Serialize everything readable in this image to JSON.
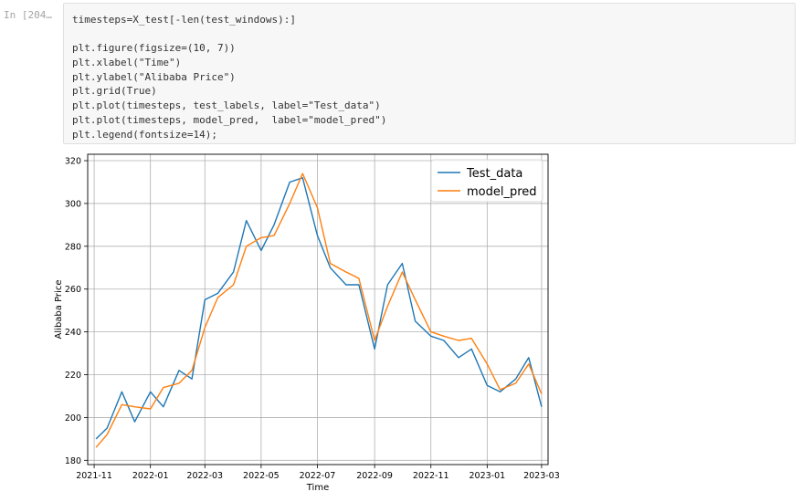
{
  "cell": {
    "prompt": "In [204…",
    "code_lines": [
      "timesteps=X_test[-len(test_windows):]",
      "",
      "plt.figure(figsize=(10, 7))",
      "plt.xlabel(\"Time\")",
      "plt.ylabel(\"Alibaba Price\")",
      "plt.grid(True)",
      "plt.plot(timesteps, test_labels, label=\"Test_data\")",
      "plt.plot(timesteps, model_pred,  label=\"model_pred\")",
      "plt.legend(fontsize=14);"
    ]
  },
  "chart_data": {
    "type": "line",
    "title": "",
    "xlabel": "Time",
    "ylabel": "Alibaba Price",
    "grid": true,
    "legend_position": "top-right",
    "x_ticks": [
      "2021-11",
      "2022-01",
      "2022-03",
      "2022-05",
      "2022-07",
      "2022-09",
      "2022-11",
      "2023-01",
      "2023-03"
    ],
    "y_ticks": [
      180,
      200,
      220,
      240,
      260,
      280,
      300,
      320
    ],
    "xlim": [
      "2021-10-25",
      "2023-03-08"
    ],
    "ylim": [
      178,
      323
    ],
    "x": [
      "2021-11-03",
      "2021-11-15",
      "2021-12-01",
      "2021-12-15",
      "2022-01-01",
      "2022-01-15",
      "2022-02-01",
      "2022-02-15",
      "2022-03-01",
      "2022-03-15",
      "2022-04-01",
      "2022-04-15",
      "2022-05-01",
      "2022-05-15",
      "2022-06-01",
      "2022-06-15",
      "2022-07-01",
      "2022-07-15",
      "2022-08-01",
      "2022-08-15",
      "2022-09-01",
      "2022-09-15",
      "2022-10-01",
      "2022-10-15",
      "2022-11-01",
      "2022-11-15",
      "2022-12-01",
      "2022-12-15",
      "2023-01-01",
      "2023-01-15",
      "2023-02-01",
      "2023-02-15",
      "2023-03-01"
    ],
    "series": [
      {
        "name": "Test_data",
        "color": "#1f77b4",
        "values": [
          190,
          195,
          212,
          198,
          212,
          205,
          222,
          218,
          255,
          258,
          268,
          292,
          278,
          290,
          310,
          312,
          285,
          270,
          262,
          262,
          232,
          262,
          272,
          245,
          238,
          236,
          228,
          232,
          215,
          212,
          218,
          228,
          205
        ]
      },
      {
        "name": "model_pred",
        "color": "#ff7f0e",
        "values": [
          186,
          192,
          206,
          205,
          204,
          214,
          216,
          222,
          242,
          256,
          262,
          280,
          284,
          285,
          300,
          314,
          298,
          272,
          268,
          265,
          236,
          252,
          268,
          255,
          240,
          238,
          236,
          237,
          225,
          213,
          216,
          225,
          211
        ]
      }
    ]
  }
}
